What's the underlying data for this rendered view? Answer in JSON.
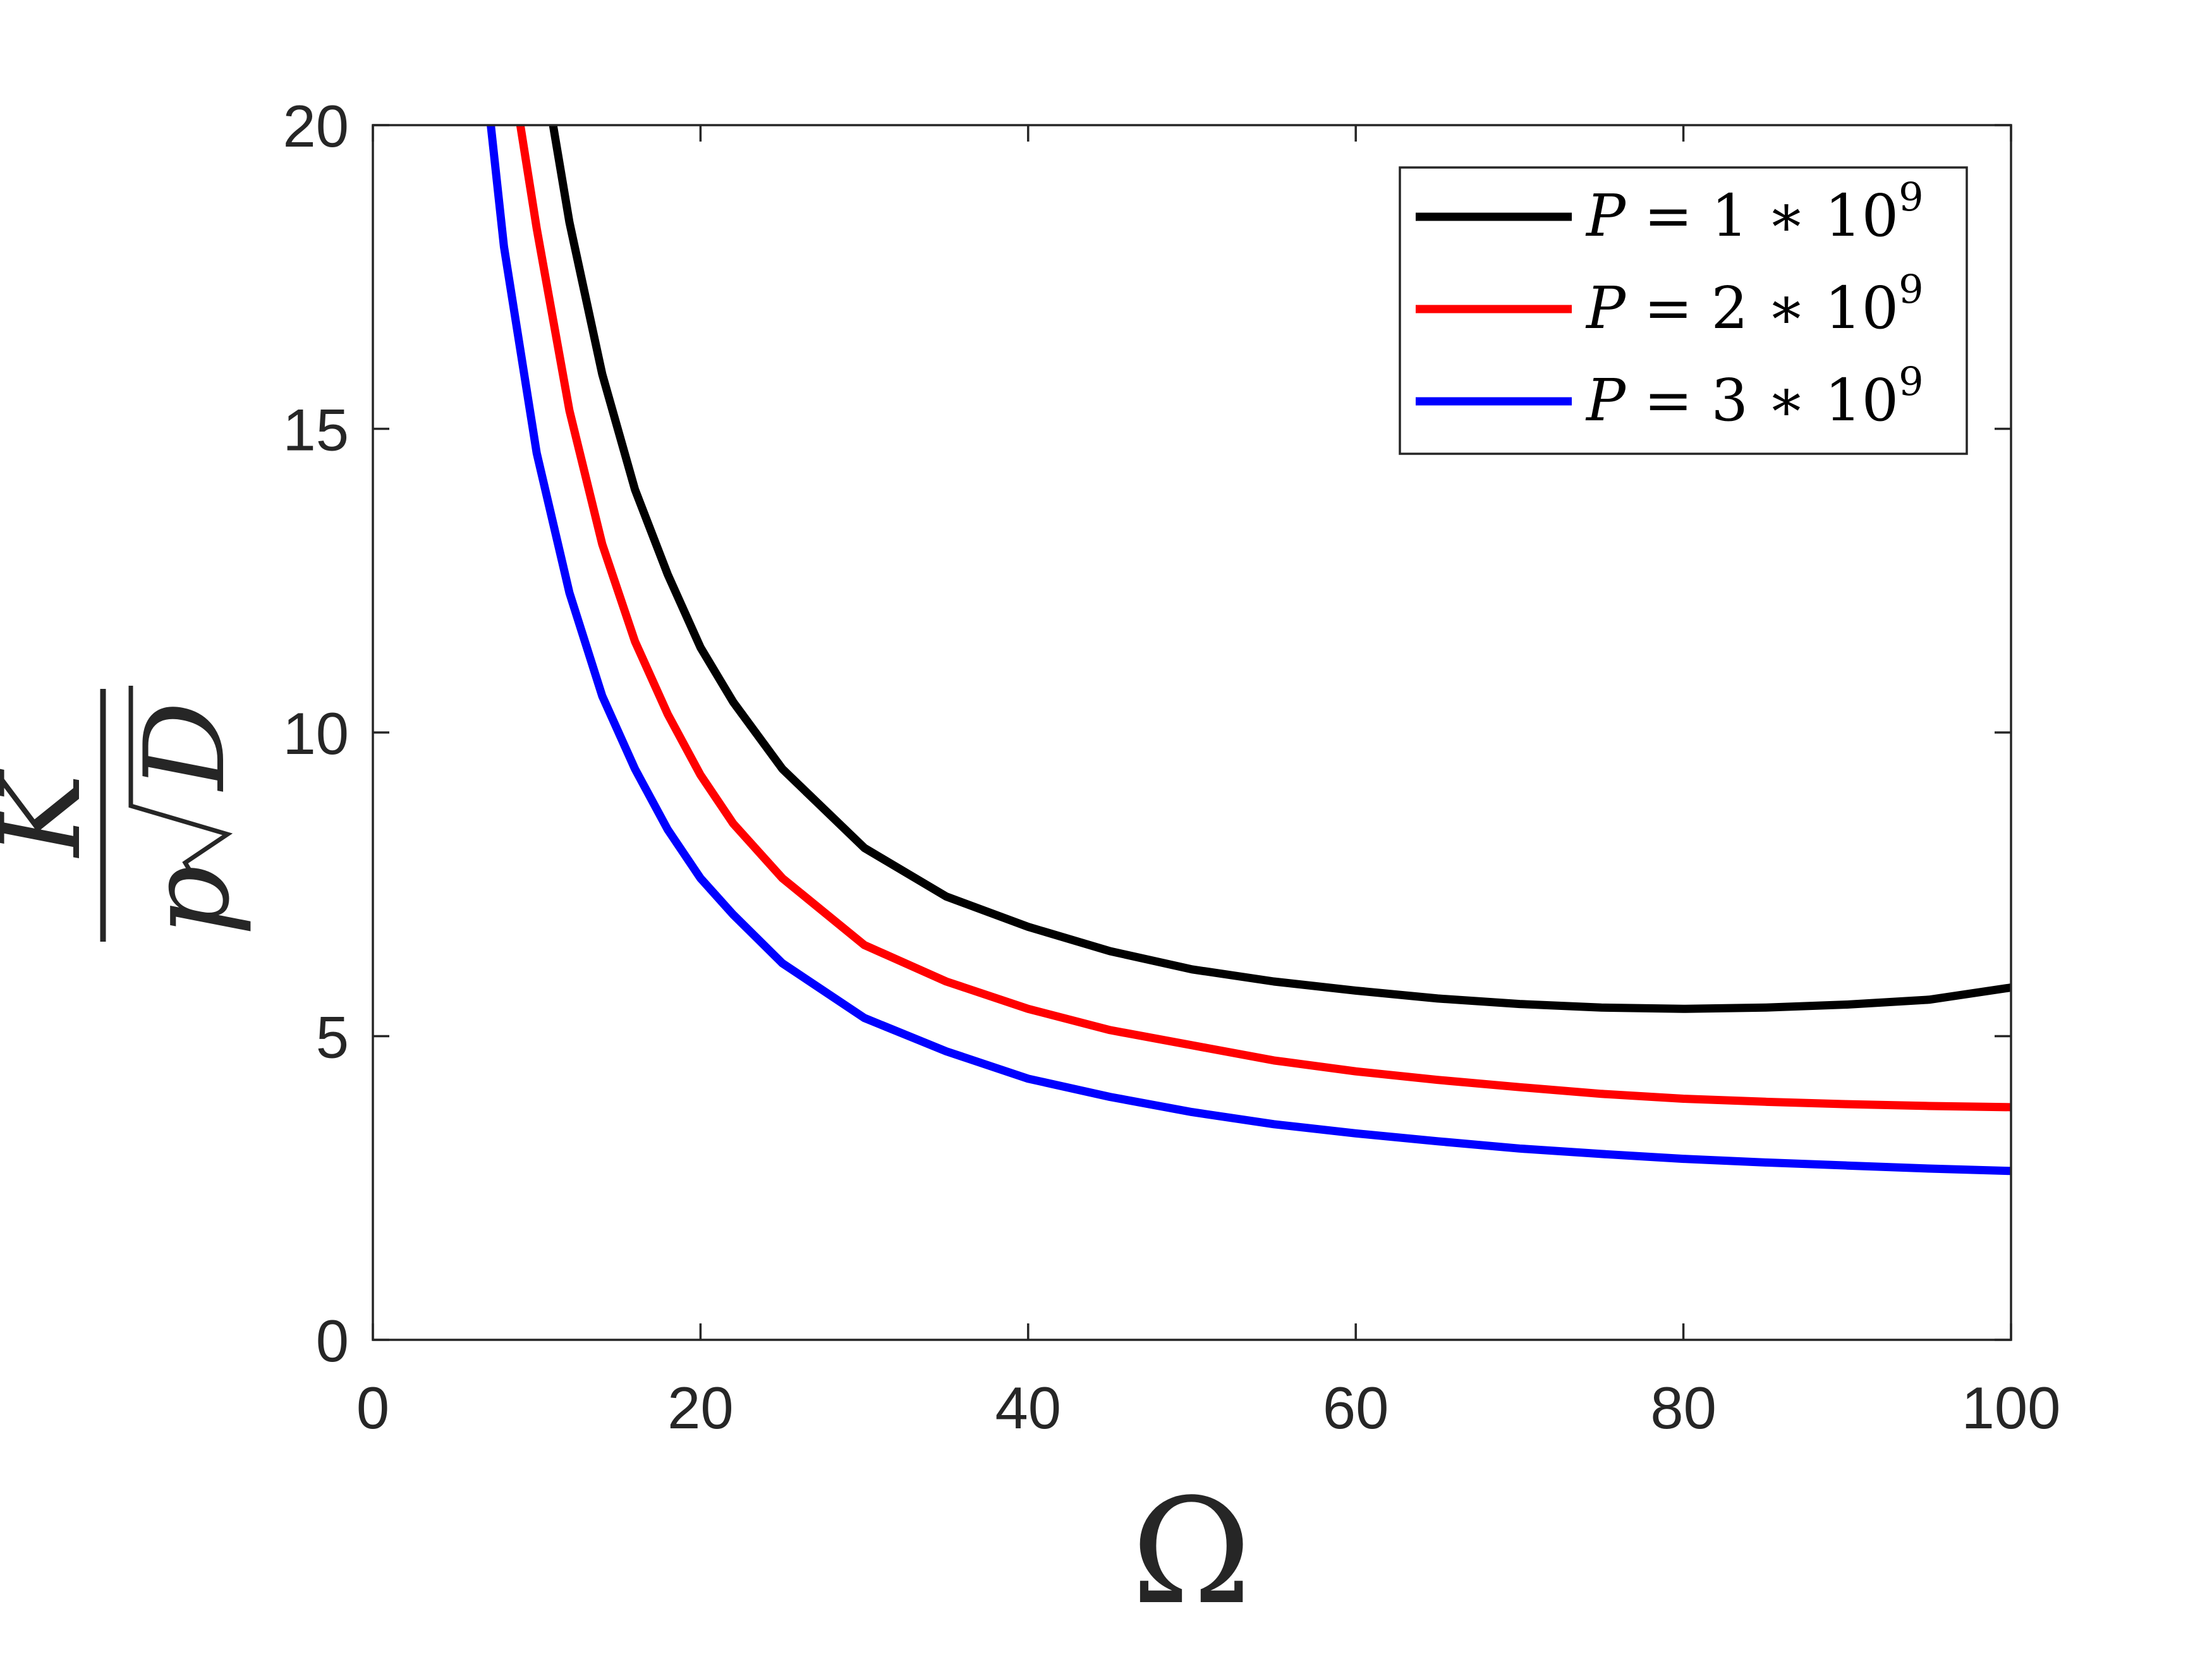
{
  "chart_data": {
    "type": "line",
    "title": "",
    "xlabel": "Ω",
    "ylabel": {
      "numerator": "K",
      "denominator_prefix": "p",
      "denominator_radicand": "D"
    },
    "xlim": [
      0,
      100
    ],
    "ylim": [
      0,
      20
    ],
    "xticks": [
      0,
      20,
      40,
      60,
      80,
      100
    ],
    "yticks": [
      0,
      5,
      10,
      15,
      20
    ],
    "grid": false,
    "legend_position": "top-right",
    "series": [
      {
        "name": "P = 1 * 10^9",
        "legend": {
          "var": "P",
          "eq": " = ",
          "coef": "1",
          "op": " ∗ ",
          "base": "10",
          "exp": "9"
        },
        "color": "#000000",
        "x": [
          11,
          12,
          14,
          16,
          18,
          20,
          22,
          25,
          30,
          35,
          40,
          45,
          50,
          55,
          60,
          65,
          70,
          75,
          80,
          85,
          90,
          95,
          100
        ],
        "y": [
          20.0,
          18.4,
          15.9,
          14.0,
          12.6,
          11.4,
          10.5,
          9.4,
          8.1,
          7.3,
          6.8,
          6.4,
          6.1,
          5.9,
          5.75,
          5.62,
          5.53,
          5.47,
          5.45,
          5.47,
          5.52,
          5.6,
          5.8
        ]
      },
      {
        "name": "P = 2 * 10^9",
        "legend": {
          "var": "P",
          "eq": " = ",
          "coef": "2",
          "op": " ∗ ",
          "base": "10",
          "exp": "9"
        },
        "color": "#ff0000",
        "x": [
          9,
          10,
          12,
          14,
          16,
          18,
          20,
          22,
          25,
          30,
          35,
          40,
          45,
          50,
          55,
          60,
          65,
          70,
          75,
          80,
          85,
          90,
          95,
          100
        ],
        "y": [
          20.0,
          18.3,
          15.3,
          13.1,
          11.5,
          10.3,
          9.3,
          8.5,
          7.6,
          6.5,
          5.9,
          5.45,
          5.1,
          4.85,
          4.6,
          4.42,
          4.28,
          4.16,
          4.05,
          3.97,
          3.92,
          3.88,
          3.85,
          3.83
        ]
      },
      {
        "name": "P = 3 * 10^9",
        "legend": {
          "var": "P",
          "eq": " = ",
          "coef": "3",
          "op": " ∗ ",
          "base": "10",
          "exp": "9"
        },
        "color": "#0000ff",
        "x": [
          7.2,
          8,
          10,
          12,
          14,
          16,
          18,
          20,
          22,
          25,
          30,
          35,
          40,
          45,
          50,
          55,
          60,
          65,
          70,
          75,
          80,
          85,
          90,
          95,
          100
        ],
        "y": [
          20.0,
          18.0,
          14.6,
          12.3,
          10.6,
          9.4,
          8.4,
          7.6,
          7.0,
          6.2,
          5.3,
          4.75,
          4.3,
          4.0,
          3.75,
          3.55,
          3.4,
          3.27,
          3.15,
          3.06,
          2.98,
          2.92,
          2.87,
          2.82,
          2.78
        ]
      }
    ]
  }
}
